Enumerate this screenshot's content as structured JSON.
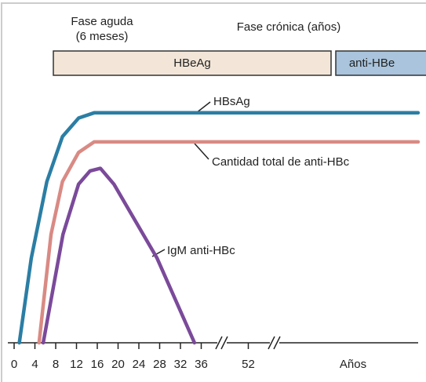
{
  "chart_data": {
    "type": "line",
    "annotations": {
      "acute": [
        "Fase aguda",
        "(6 meses)"
      ],
      "chronic": "Fase crónica (años)",
      "phase_early": "HBeAg",
      "phase_late": "anti-HBe"
    },
    "x_label": "Años",
    "xlim": [
      0,
      200
    ],
    "x_breaks": [
      40,
      64
    ],
    "xticks": [
      0,
      4,
      8,
      12,
      16,
      20,
      24,
      28,
      32,
      36,
      52
    ],
    "ylim": [
      0,
      100
    ],
    "series": [
      {
        "name": "HBsAg",
        "color": "#2b7ea4",
        "x": [
          1,
          3.3,
          6.3,
          9.3,
          12.4,
          15.4,
          200
        ],
        "values": [
          0,
          32,
          61,
          78,
          85,
          87,
          87
        ]
      },
      {
        "name": "Cantidad total de anti-HBc",
        "color": "#d98a84",
        "x": [
          4.8,
          7.1,
          9.3,
          12.4,
          15.4,
          18.4,
          200
        ],
        "values": [
          0,
          41,
          61,
          72,
          76,
          76,
          76
        ]
      },
      {
        "name": "IgM anti-HBc",
        "color": "#7b4a9a",
        "x": [
          5.6,
          9.4,
          12.4,
          14.6,
          16.6,
          19.2,
          27.5,
          34.7
        ],
        "values": [
          0,
          41,
          60,
          65,
          66,
          60,
          32,
          0
        ]
      }
    ]
  }
}
